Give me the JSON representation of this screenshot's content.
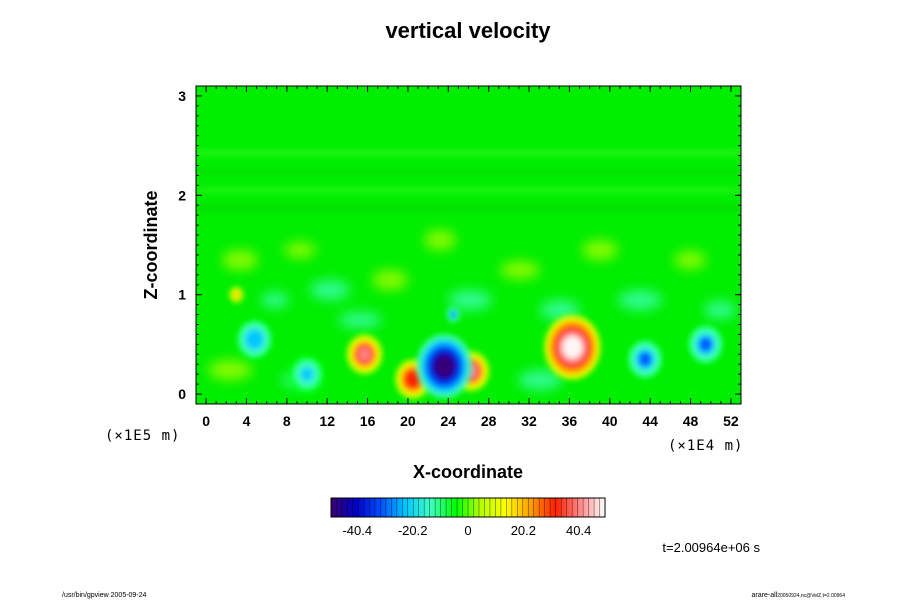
{
  "chart_data": {
    "type": "heatmap",
    "title": "vertical velocity",
    "xlabel": "X-coordinate",
    "ylabel": "Z-coordinate",
    "x_scale_note": "(×1E4 m)",
    "y_scale_note": "(×1E5 m)",
    "xlim": [
      -1,
      53
    ],
    "ylim": [
      -0.1,
      3.1
    ],
    "x_ticks": [
      0,
      4,
      8,
      12,
      16,
      20,
      24,
      28,
      32,
      36,
      40,
      44,
      48,
      52
    ],
    "y_ticks": [
      0,
      1,
      2,
      3
    ],
    "colorbar": {
      "ticks": [
        -40.4,
        -20.2,
        0,
        20.2,
        40.4
      ],
      "tick_labels": [
        "-40.4",
        "-20.2",
        "0",
        "20.2",
        "40.4"
      ],
      "range": [
        -50,
        50
      ],
      "palette": [
        "#3a0070",
        "#0000c8",
        "#0050ff",
        "#00c8ff",
        "#40ffc0",
        "#00ff00",
        "#b4ff00",
        "#ffff00",
        "#ffa000",
        "#ff2000",
        "#ff8888",
        "#ffffff"
      ]
    },
    "background_value": 0,
    "features": [
      {
        "name": "updraft-core",
        "x": 36.3,
        "z": 0.47,
        "value": 52
      },
      {
        "name": "updraft",
        "x": 15.7,
        "z": 0.4,
        "value": 38
      },
      {
        "name": "updraft",
        "x": 26.3,
        "z": 0.23,
        "value": 40
      },
      {
        "name": "updraft",
        "x": 20.5,
        "z": 0.15,
        "value": 35
      },
      {
        "name": "downdraft-core",
        "x": 23.6,
        "z": 0.28,
        "value": -52
      },
      {
        "name": "downdraft",
        "x": 43.5,
        "z": 0.35,
        "value": -30
      },
      {
        "name": "downdraft",
        "x": 49.5,
        "z": 0.5,
        "value": -28
      },
      {
        "name": "downdraft",
        "x": 4.8,
        "z": 0.55,
        "value": -25
      },
      {
        "name": "downdraft",
        "x": 10.0,
        "z": 0.2,
        "value": -22
      },
      {
        "name": "downdraft-small",
        "x": 24.5,
        "z": 0.8,
        "value": -30
      },
      {
        "name": "updraft-small",
        "x": 3.0,
        "z": 1.0,
        "value": 22
      }
    ]
  },
  "time_label": "t=2.00964e+06 s",
  "footer": {
    "left": "/usr/bin/gpview 2005-09-24",
    "right": "arare-all",
    "right_small": "20050924.nc@VelZ,t=2.00964"
  }
}
